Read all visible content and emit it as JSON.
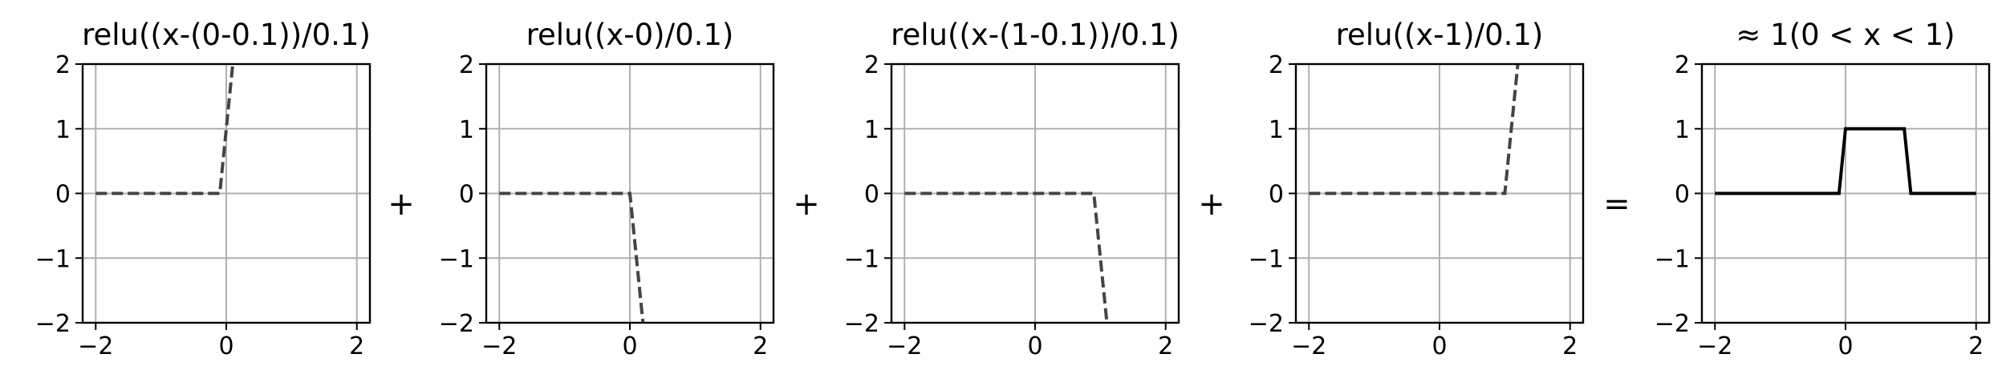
{
  "chart_data": [
    {
      "type": "line",
      "title": "relu((x-(0-0.1))/0.1)",
      "xlim": [
        -2.2,
        2.2
      ],
      "ylim": [
        -2,
        2
      ],
      "xticks": [
        -2,
        0,
        2
      ],
      "yticks": [
        -2,
        -1,
        0,
        1,
        2
      ],
      "xtick_labels": [
        "−2",
        "0",
        "2"
      ],
      "ytick_labels": [
        "−2",
        "−1",
        "0",
        "1",
        "2"
      ],
      "grid": true,
      "series": [
        {
          "style": "dashed",
          "color": "#444444",
          "x": [
            -2,
            -0.1,
            0.1
          ],
          "y": [
            0,
            0,
            2
          ]
        }
      ]
    },
    {
      "type": "line",
      "title": "relu((x-0)/0.1)",
      "xlim": [
        -2.2,
        2.2
      ],
      "ylim": [
        -2,
        2
      ],
      "xticks": [
        -2,
        0,
        2
      ],
      "yticks": [
        -2,
        -1,
        0,
        1,
        2
      ],
      "xtick_labels": [
        "−2",
        "0",
        "2"
      ],
      "ytick_labels": [
        "−2",
        "−1",
        "0",
        "1",
        "2"
      ],
      "grid": true,
      "series": [
        {
          "style": "dashed",
          "color": "#444444",
          "x": [
            -2,
            0,
            0.2
          ],
          "y": [
            0,
            0,
            -2
          ]
        }
      ]
    },
    {
      "type": "line",
      "title": "relu((x-(1-0.1))/0.1)",
      "xlim": [
        -2.2,
        2.2
      ],
      "ylim": [
        -2,
        2
      ],
      "xticks": [
        -2,
        0,
        2
      ],
      "yticks": [
        -2,
        -1,
        0,
        1,
        2
      ],
      "xtick_labels": [
        "−2",
        "0",
        "2"
      ],
      "ytick_labels": [
        "−2",
        "−1",
        "0",
        "1",
        "2"
      ],
      "grid": true,
      "series": [
        {
          "style": "dashed",
          "color": "#444444",
          "x": [
            -2,
            0.9,
            1.1
          ],
          "y": [
            0,
            0,
            -2
          ]
        }
      ]
    },
    {
      "type": "line",
      "title": "relu((x-1)/0.1)",
      "xlim": [
        -2.2,
        2.2
      ],
      "ylim": [
        -2,
        2
      ],
      "xticks": [
        -2,
        0,
        2
      ],
      "yticks": [
        -2,
        -1,
        0,
        1,
        2
      ],
      "xtick_labels": [
        "−2",
        "0",
        "2"
      ],
      "ytick_labels": [
        "−2",
        "−1",
        "0",
        "1",
        "2"
      ],
      "grid": true,
      "series": [
        {
          "style": "dashed",
          "color": "#444444",
          "x": [
            -2,
            1,
            1.2
          ],
          "y": [
            0,
            0,
            2
          ]
        }
      ]
    },
    {
      "type": "line",
      "title": "≈ 1(0 < x < 1)",
      "xlim": [
        -2.2,
        2.2
      ],
      "ylim": [
        -2,
        2
      ],
      "xticks": [
        -2,
        0,
        2
      ],
      "yticks": [
        -2,
        -1,
        0,
        1,
        2
      ],
      "xtick_labels": [
        "−2",
        "0",
        "2"
      ],
      "ytick_labels": [
        "−2",
        "−1",
        "0",
        "1",
        "2"
      ],
      "grid": true,
      "series": [
        {
          "style": "solid",
          "color": "#000000",
          "x": [
            -2,
            -0.1,
            0,
            0.9,
            1,
            2
          ],
          "y": [
            0,
            0,
            1,
            1,
            0,
            0
          ]
        }
      ]
    }
  ],
  "operators": [
    "+",
    "+",
    "+",
    "="
  ]
}
